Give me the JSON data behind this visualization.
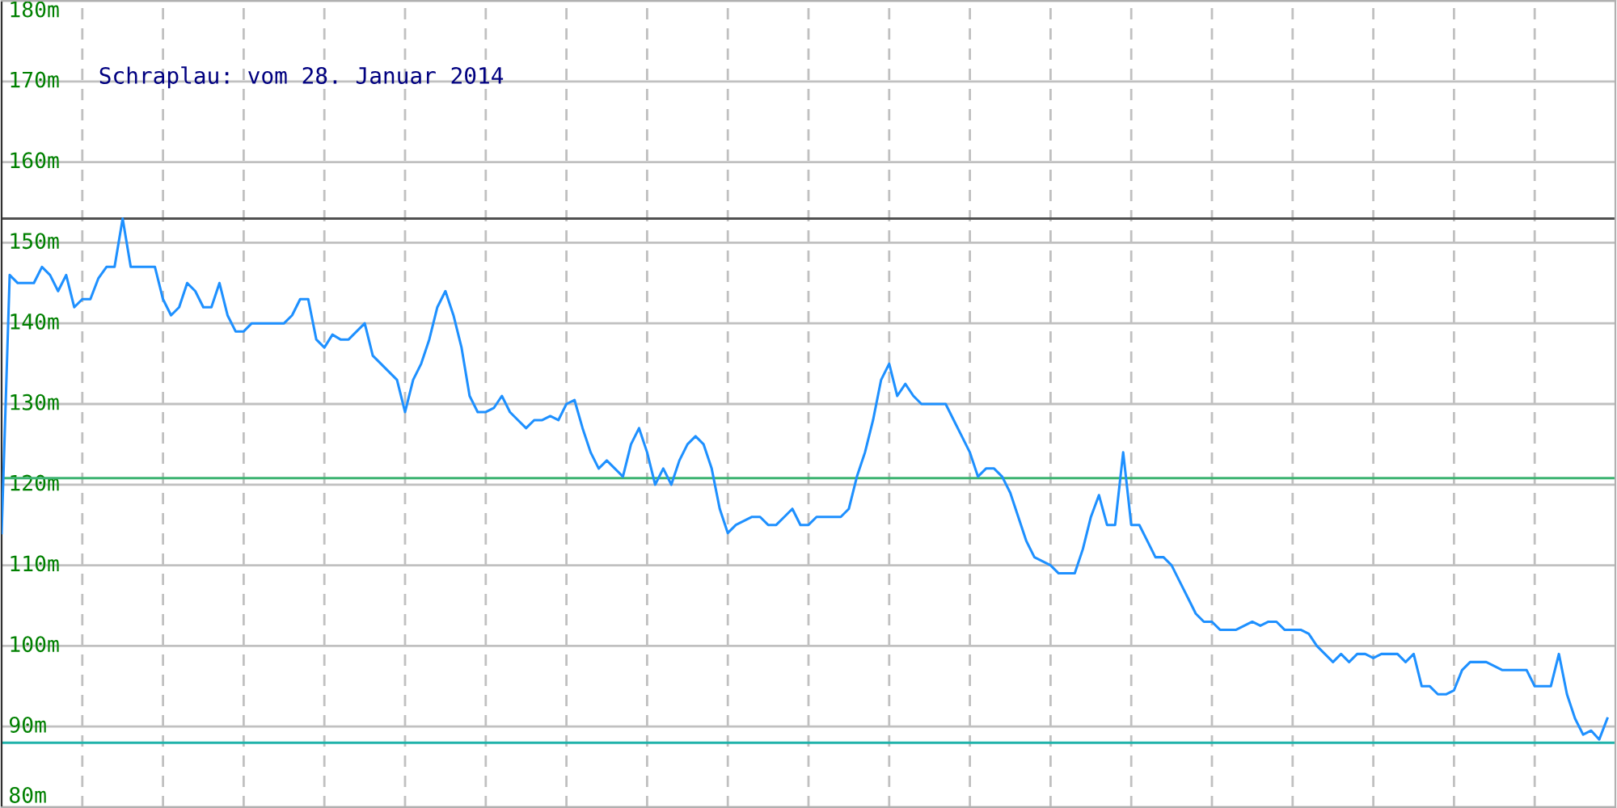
{
  "chart_data": {
    "type": "line",
    "title": "Schraplau: vom 28. Januar 2014",
    "categories": [
      null,
      null,
      null,
      null,
      null,
      null,
      null,
      null,
      null,
      null,
      null,
      null,
      null,
      null,
      null,
      null,
      null,
      null,
      null,
      null,
      null,
      null,
      null,
      null,
      null,
      null,
      null,
      null,
      null,
      null,
      null,
      null,
      null,
      null,
      null,
      null,
      null,
      null,
      null,
      null,
      null,
      null,
      null,
      null,
      null,
      null,
      null,
      null,
      null,
      null,
      null,
      null,
      null,
      null,
      null,
      null,
      null,
      null,
      null,
      null,
      null,
      null,
      null,
      null,
      null,
      null,
      null,
      null,
      null,
      null,
      null,
      null,
      null,
      null,
      null,
      null,
      null,
      null,
      null,
      null,
      null,
      null,
      null,
      null,
      null,
      null,
      null,
      null,
      null,
      null,
      null,
      null,
      null,
      null,
      null,
      null,
      null,
      null,
      null,
      null,
      null,
      null,
      null,
      null,
      null,
      null,
      null,
      null,
      null,
      null,
      null,
      null,
      null,
      null,
      null,
      null,
      null,
      null,
      null,
      null,
      null,
      null,
      null,
      null,
      null,
      null,
      null,
      null,
      null,
      null,
      null,
      null,
      null,
      null,
      null,
      null,
      null,
      null,
      null,
      null,
      null,
      null,
      null,
      null,
      null,
      null,
      null,
      null,
      null,
      null,
      null,
      null,
      null,
      null,
      null,
      null,
      null,
      null,
      null,
      null,
      null,
      null,
      null,
      null,
      null,
      null,
      null,
      null,
      null,
      null,
      null,
      null,
      null,
      null,
      null,
      null,
      null,
      null,
      null,
      null,
      null,
      null,
      null,
      null,
      null,
      null,
      null,
      null,
      null,
      null,
      null,
      null,
      null,
      null,
      null,
      null,
      null,
      null,
      null,
      null
    ],
    "series": [
      {
        "color": "#1e90ff",
        "values": [
          114,
          146,
          145,
          145,
          145,
          147,
          146,
          144,
          146,
          142,
          143,
          143,
          145.6,
          147,
          147,
          153,
          147,
          147,
          147,
          147,
          143,
          141,
          142,
          145,
          144,
          142,
          142,
          145,
          141,
          139,
          139,
          140,
          140,
          140,
          140,
          140,
          141,
          143,
          143,
          138,
          137,
          138.6,
          138,
          138,
          139,
          140,
          136,
          135,
          134,
          133,
          129,
          133,
          135,
          138,
          142,
          144,
          141,
          137,
          131,
          129,
          129,
          129.5,
          131,
          129,
          128,
          127,
          128,
          128,
          128.5,
          128,
          130,
          130.5,
          127,
          124,
          122,
          123,
          122,
          121,
          125,
          127,
          124,
          120,
          122,
          120,
          123,
          125,
          126,
          125,
          122,
          117,
          114,
          115,
          115.5,
          116,
          116,
          115,
          115,
          116,
          117,
          115,
          115,
          116,
          116,
          116,
          116,
          117,
          121,
          124,
          128,
          133,
          135,
          131,
          132.5,
          131,
          130,
          130,
          130,
          130,
          128,
          126,
          124,
          121,
          122,
          122,
          121,
          119,
          116,
          113,
          111,
          110.5,
          110,
          109,
          109,
          109,
          112,
          116,
          118.7,
          115,
          115,
          124,
          115,
          115,
          113,
          111,
          111,
          110,
          108,
          106,
          104,
          103,
          103,
          102,
          102,
          102,
          102.5,
          103,
          102.5,
          103,
          103,
          102,
          102,
          102,
          101.5,
          100,
          99,
          98,
          99,
          98,
          99,
          99,
          98.5,
          99,
          99,
          99,
          98,
          99,
          95,
          95,
          94,
          94,
          94.5,
          97,
          98,
          98,
          98,
          97.5,
          97,
          97,
          97,
          97,
          95,
          95,
          95,
          99,
          94,
          91,
          89,
          89.5,
          88.4,
          91
        ]
      }
    ],
    "ylim": [
      80,
      180
    ],
    "yticks": [
      {
        "value": 80,
        "label": "80m"
      },
      {
        "value": 90,
        "label": "90m"
      },
      {
        "value": 100,
        "label": "100m"
      },
      {
        "value": 110,
        "label": "110m"
      },
      {
        "value": 120,
        "label": "120m"
      },
      {
        "value": 130,
        "label": "130m"
      },
      {
        "value": 140,
        "label": "140m"
      },
      {
        "value": 150,
        "label": "150m"
      },
      {
        "value": 160,
        "label": "160m"
      },
      {
        "value": 170,
        "label": "170m"
      },
      {
        "value": 180,
        "label": "180m"
      }
    ],
    "ref_lines": [
      {
        "axis": "y",
        "value": 153,
        "color": "#505050"
      },
      {
        "axis": "y",
        "value": 120.8,
        "color": "#3cb371"
      },
      {
        "axis": "y",
        "value": 88,
        "color": "#20b2aa"
      }
    ],
    "grid": true,
    "legend": false,
    "marker": "none",
    "line_style": "solid"
  }
}
